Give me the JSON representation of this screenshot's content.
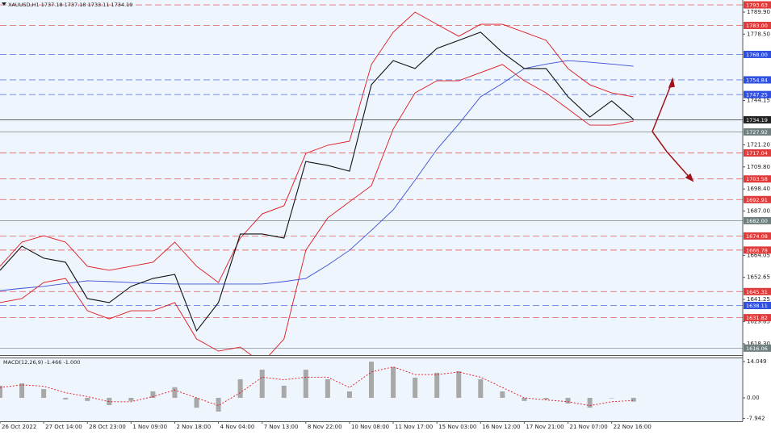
{
  "chart_data": [
    {
      "type": "line",
      "title": "XAUUSD,H1  1737.18 1737.18 1733.11 1734.19",
      "x": [
        0,
        1,
        2,
        3,
        4,
        5,
        6,
        7,
        8,
        9,
        10,
        11,
        12,
        13,
        14,
        15,
        16,
        17,
        18,
        19,
        20,
        21,
        22,
        23,
        24,
        25,
        26,
        27,
        28,
        29
      ],
      "xlim": [
        0,
        34
      ],
      "ylim": [
        1612.45,
        1796.16
      ],
      "yticks": [
        {
          "value": 1789.9,
          "label": "1789.90"
        },
        {
          "value": 1778.5,
          "label": "1778.50"
        },
        1744.15,
        {
          "value": 1721.2,
          "label": "1721.20"
        },
        {
          "value": 1709.8,
          "label": "1709.80"
        },
        {
          "value": 1698.4,
          "label": "1698.40"
        },
        {
          "value": 1687.0,
          "label": "1687.00"
        },
        1664.05,
        1652.65,
        1641.25,
        1629.85,
        {
          "value": 1618.3,
          "label": "1618.30"
        }
      ],
      "series": [
        {
          "color": "#3a4fd6",
          "values": [
            1645.8,
            1647,
            1648,
            1649.5,
            1650.9,
            1650.5,
            1650,
            1649.5,
            1649.2,
            1649.2,
            1649.2,
            1649.2,
            1649.2,
            1650.5,
            1652.1,
            1659,
            1666.7,
            1677,
            1687.6,
            1703,
            1718.9,
            1732,
            1746.1,
            1753,
            1760.7,
            1763,
            1764.8,
            1764,
            1763,
            1761.9
          ]
        },
        {
          "color": "#e0161b",
          "values": [
            1658.4,
            1670.9,
            1674.2,
            1670.9,
            1658.4,
            1656.3,
            1658.4,
            1660.5,
            1670.9,
            1658.4,
            1650,
            1673,
            1685.5,
            1689.7,
            1716.8,
            1721,
            1723.1,
            1762.8,
            1779.5,
            1789.9,
            1783.6,
            1777.4,
            1783.6,
            1783.6,
            1779.5,
            1775.3,
            1760.7,
            1752.3,
            1748.1,
            1746.1
          ]
        },
        {
          "color": "#e0161b",
          "values": [
            1639.6,
            1641.7,
            1650,
            1652.1,
            1635.4,
            1631.2,
            1635.4,
            1635.4,
            1639.6,
            1620.8,
            1614.5,
            1616.6,
            1608.3,
            1620.8,
            1666.7,
            1683.4,
            1691.8,
            1700.1,
            1729.4,
            1748.1,
            1754.4,
            1754.4,
            1758.6,
            1762.8,
            1754.4,
            1748.1,
            1739.8,
            1731.4,
            1731.4,
            1733.5
          ]
        },
        {
          "color": "#111111",
          "values": [
            1656.3,
            1668.8,
            1662.6,
            1660.5,
            1641.7,
            1639.6,
            1648,
            1652.1,
            1654.2,
            1625,
            1639.6,
            1675.1,
            1675.1,
            1673,
            1712.6,
            1710.6,
            1707.6,
            1752.3,
            1764.8,
            1760.7,
            1771.1,
            1775.3,
            1779.5,
            1769,
            1760.7,
            1760.7,
            1746.1,
            1735.6,
            1744,
            1734.4
          ]
        }
      ],
      "levels": [
        {
          "value": 1793.63,
          "label": "1793.63",
          "color": "#e03a3a"
        },
        {
          "value": 1783.0,
          "label": "1783.00",
          "color": "#e03a3a"
        },
        {
          "value": 1768.0,
          "label": "1768.00",
          "color": "#2f4fe0"
        },
        {
          "value": 1754.84,
          "label": "1754.84",
          "color": "#2f4fe0"
        },
        {
          "value": 1747.25,
          "label": "1747.25",
          "color": "#2f4fe0"
        },
        {
          "value": 1734.19,
          "label": "1734.19",
          "color": "#222222"
        },
        {
          "value": 1727.92,
          "label": "1727.92",
          "color": "#6f7f7f"
        },
        {
          "value": 1717.04,
          "label": "1717.04",
          "color": "#e03a3a"
        },
        {
          "value": 1703.58,
          "label": "1703.58",
          "color": "#e03a3a"
        },
        {
          "value": 1692.91,
          "label": "1692.91",
          "color": "#e03a3a"
        },
        {
          "value": 1682.0,
          "label": "1682.00",
          "color": "#6f7f7f"
        },
        {
          "value": 1674.08,
          "label": "1674.08",
          "color": "#e03a3a"
        },
        {
          "value": 1666.78,
          "label": "1666.78",
          "color": "#e03a3a"
        },
        {
          "value": 1645.31,
          "label": "1645.31",
          "color": "#e03a3a"
        },
        {
          "value": 1638.11,
          "label": "1638.11",
          "color": "#2f4fe0"
        },
        {
          "value": 1631.82,
          "label": "1631.82",
          "color": "#e03a3a"
        },
        {
          "value": 1616.06,
          "label": "1616.06",
          "color": "#6f7f7f"
        }
      ]
    },
    {
      "type": "bar",
      "title": "MACD(12,26,9) -1.466 -1.000",
      "x": [
        0,
        1,
        2,
        3,
        4,
        5,
        6,
        7,
        8,
        9,
        10,
        11,
        12,
        13,
        14,
        15,
        16,
        17,
        18,
        19,
        20,
        21,
        22,
        23,
        24,
        25,
        26,
        27,
        28,
        29
      ],
      "xlim": [
        0,
        34
      ],
      "ylim": [
        -9.06,
        15.6
      ],
      "xticks": [
        {
          "value": 0,
          "label": "26 Oct 2022"
        },
        {
          "value": 2,
          "label": "27 Oct 14:00"
        },
        {
          "value": 4,
          "label": "28 Oct 23:00"
        },
        {
          "value": 6,
          "label": "1 Nov 09:00"
        },
        {
          "value": 8,
          "label": "2 Nov 18:00"
        },
        {
          "value": 10,
          "label": "4 Nov 04:00"
        },
        {
          "value": 12,
          "label": "7 Nov 13:00"
        },
        {
          "value": 14,
          "label": "8 Nov 22:00"
        },
        {
          "value": 16,
          "label": "10 Nov 08:00"
        },
        {
          "value": 18,
          "label": "11 Nov 17:00"
        },
        {
          "value": 20,
          "label": "15 Nov 03:00"
        },
        {
          "value": 22,
          "label": "16 Nov 12:00"
        },
        {
          "value": 24,
          "label": "17 Nov 21:00"
        },
        {
          "value": 26,
          "label": "21 Nov 07:00"
        },
        {
          "value": 28,
          "label": "22 Nov 16:00"
        }
      ],
      "yticks": [
        14.049,
        {
          "value": 0,
          "label": "0.00"
        },
        -7.942
      ],
      "series": [
        {
          "color": "#a8a8a8",
          "values": [
            4.7,
            5.6,
            3.4,
            -0.6,
            -1.2,
            -2.8,
            -1.2,
            2.5,
            4.1,
            -3.8,
            -5.3,
            7.2,
            10.9,
            4.7,
            10.9,
            7.2,
            2.5,
            14.0,
            11.9,
            7.8,
            9.7,
            10.3,
            7.2,
            2.5,
            -1.2,
            -0.6,
            -2.2,
            -3.8,
            0,
            -1.466
          ]
        },
        {
          "color": "#e0161b",
          "values": [
            4,
            5,
            4.5,
            2,
            0.5,
            -1.5,
            -1.5,
            0.5,
            3,
            0,
            -3,
            2,
            8,
            7,
            8,
            8,
            4,
            10,
            12,
            9,
            9,
            10,
            8,
            4,
            0,
            -0.8,
            -1.5,
            -3,
            -1.5,
            -1.0
          ]
        }
      ]
    }
  ]
}
